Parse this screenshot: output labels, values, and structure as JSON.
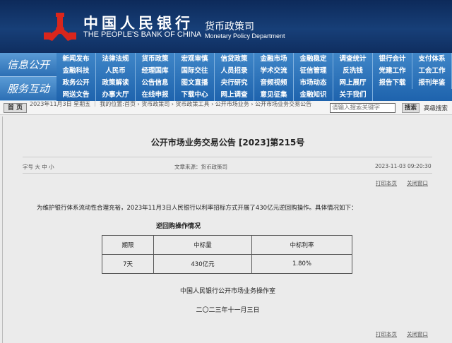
{
  "header": {
    "logo_cn": "中国人民银行",
    "logo_en": "THE PEOPLE'S BANK OF CHINA",
    "dept_cn": "货币政策司",
    "dept_en": "Monetary Policy Department"
  },
  "nav": {
    "groups": [
      {
        "label": "信息公开",
        "items": [
          "新闻发布",
          "法律法规",
          "货币政策",
          "宏观审慎",
          "信贷政策",
          "金融市场",
          "金融稳定",
          "调查统计",
          "银行会计",
          "支付体系",
          "金融科技",
          "人民币",
          "经理国库",
          "国际交往",
          "人员招录",
          "学术交流",
          "征信管理",
          "反洗钱",
          "党建工作",
          "工会工作"
        ]
      },
      {
        "label": "服务互动",
        "items": [
          "政务公开",
          "政策解读",
          "公告信息",
          "图文直播",
          "央行研究",
          "音频视频",
          "市场动态",
          "网上展厅",
          "报告下载",
          "报刊年鉴",
          "网送文告",
          "办事大厅",
          "在线申报",
          "下载中心",
          "网上调查",
          "意见征集",
          "金融知识",
          "关于我们"
        ]
      }
    ]
  },
  "crumbbar": {
    "home": "首 页",
    "text": "2023年11月3日 星期五 ｜ 我的位置:首页 › 货币政策司 › 货币政策工具 › 公开市场业务 › 公开市场业务交易公告",
    "search_placeholder": "请输入搜索关键字",
    "search_btn": "搜索",
    "advanced": "高级搜索"
  },
  "article": {
    "title": "公开市场业务交易公告 [2023]第215号",
    "font_size_label": "字号 大 中 小",
    "source": "文章来源：货币政策司",
    "datetime": "2023-11-03 09:20:30",
    "print": "打印本页",
    "close": "关闭窗口",
    "body": "为维护银行体系流动性合理充裕，2023年11月3日人民银行以利率招标方式开展了430亿元逆回购操作。具体情况如下：",
    "table_caption": "逆回购操作情况",
    "table": {
      "headers": [
        "期限",
        "中标量",
        "中标利率"
      ],
      "rows": [
        [
          "7天",
          "430亿元",
          "1.80%"
        ]
      ]
    },
    "signature": "中国人民银行公开市场业务操作室",
    "date": "二〇二三年十一月三日"
  }
}
